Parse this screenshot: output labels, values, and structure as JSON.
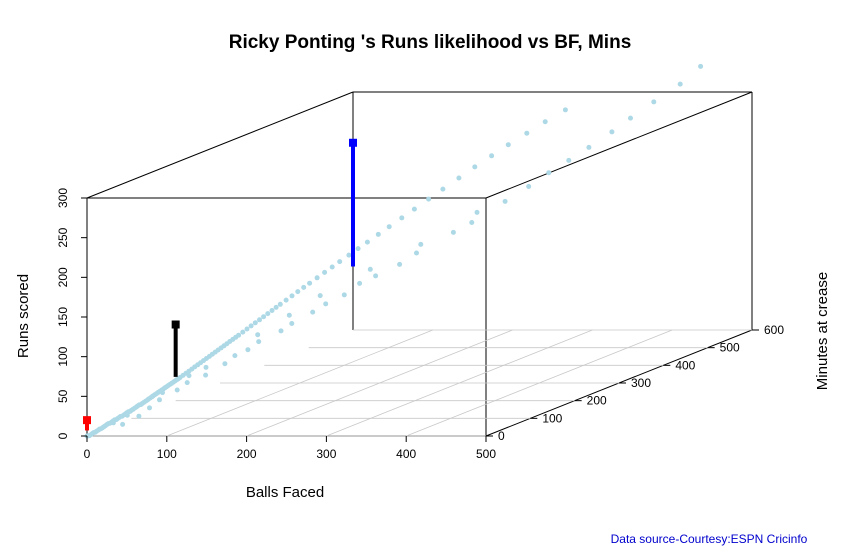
{
  "chart_data": {
    "type": "scatter",
    "title": "Ricky Ponting 's Runs likelihood vs BF, Mins",
    "xlabel": "Balls Faced",
    "ylabel": "Runs scored",
    "zlabel": "Minutes at crease",
    "xlim": [
      0,
      500
    ],
    "ylim": [
      0,
      600
    ],
    "zlim": [
      0,
      300
    ],
    "x_ticks": [
      "0",
      "100",
      "200",
      "300",
      "400",
      "500"
    ],
    "y_ticks": [
      "0",
      "100",
      "200",
      "300",
      "400",
      "500",
      "600"
    ],
    "z_ticks": [
      "0",
      "50",
      "100",
      "150",
      "200",
      "250",
      "300"
    ],
    "point_color": "#add8e6",
    "points": [
      [
        0,
        0,
        0
      ],
      [
        1,
        1,
        0
      ],
      [
        2,
        2,
        0
      ],
      [
        3,
        4,
        1
      ],
      [
        4,
        5,
        2
      ],
      [
        5,
        6,
        3
      ],
      [
        6,
        8,
        3
      ],
      [
        7,
        9,
        4
      ],
      [
        8,
        11,
        5
      ],
      [
        9,
        12,
        6
      ],
      [
        10,
        13,
        6
      ],
      [
        11,
        15,
        7
      ],
      [
        12,
        17,
        8
      ],
      [
        13,
        18,
        9
      ],
      [
        14,
        20,
        10
      ],
      [
        15,
        21,
        11
      ],
      [
        16,
        23,
        11
      ],
      [
        17,
        25,
        12
      ],
      [
        18,
        26,
        13
      ],
      [
        19,
        28,
        14
      ],
      [
        20,
        30,
        14
      ],
      [
        21,
        31,
        15
      ],
      [
        22,
        33,
        16
      ],
      [
        23,
        34,
        17
      ],
      [
        24,
        36,
        17
      ],
      [
        25,
        38,
        18
      ],
      [
        26,
        40,
        19
      ],
      [
        27,
        41,
        20
      ],
      [
        28,
        43,
        21
      ],
      [
        29,
        45,
        21
      ],
      [
        30,
        46,
        22
      ],
      [
        31,
        48,
        23
      ],
      [
        32,
        50,
        24
      ],
      [
        33,
        52,
        25
      ],
      [
        34,
        53,
        26
      ],
      [
        35,
        55,
        27
      ],
      [
        36,
        57,
        27
      ],
      [
        37,
        58,
        28
      ],
      [
        38,
        60,
        29
      ],
      [
        39,
        62,
        30
      ],
      [
        40,
        64,
        31
      ],
      [
        41,
        65,
        32
      ],
      [
        42,
        67,
        33
      ],
      [
        43,
        69,
        34
      ],
      [
        44,
        70,
        35
      ],
      [
        45,
        72,
        36
      ],
      [
        46,
        74,
        37
      ],
      [
        47,
        76,
        38
      ],
      [
        48,
        78,
        39
      ],
      [
        49,
        80,
        40
      ],
      [
        50,
        82,
        41
      ],
      [
        51,
        84,
        42
      ],
      [
        52,
        86,
        43
      ],
      [
        53,
        88,
        44
      ],
      [
        54,
        90,
        45
      ],
      [
        55,
        92,
        46
      ],
      [
        56,
        94,
        47
      ],
      [
        57,
        96,
        48
      ],
      [
        58,
        98,
        49
      ],
      [
        59,
        100,
        50
      ],
      [
        60,
        102,
        51
      ],
      [
        62,
        105,
        53
      ],
      [
        64,
        108,
        55
      ],
      [
        66,
        111,
        57
      ],
      [
        68,
        114,
        59
      ],
      [
        70,
        117,
        61
      ],
      [
        72,
        120,
        63
      ],
      [
        74,
        123,
        65
      ],
      [
        76,
        126,
        67
      ],
      [
        78,
        129,
        69
      ],
      [
        80,
        132,
        71
      ],
      [
        82,
        135,
        73
      ],
      [
        84,
        138,
        75
      ],
      [
        86,
        141,
        77
      ],
      [
        88,
        144,
        79
      ],
      [
        90,
        147,
        81
      ],
      [
        92,
        150,
        83
      ],
      [
        94,
        153,
        85
      ],
      [
        96,
        156,
        87
      ],
      [
        98,
        159,
        89
      ],
      [
        100,
        162,
        91
      ],
      [
        103,
        166,
        94
      ],
      [
        106,
        170,
        97
      ],
      [
        109,
        174,
        100
      ],
      [
        112,
        178,
        103
      ],
      [
        115,
        182,
        106
      ],
      [
        118,
        186,
        109
      ],
      [
        121,
        190,
        112
      ],
      [
        124,
        194,
        115
      ],
      [
        127,
        198,
        118
      ],
      [
        130,
        202,
        121
      ],
      [
        134,
        208,
        125
      ],
      [
        138,
        214,
        129
      ],
      [
        142,
        220,
        133
      ],
      [
        146,
        226,
        137
      ],
      [
        150,
        232,
        141
      ],
      [
        155,
        240,
        146
      ],
      [
        160,
        248,
        151
      ],
      [
        165,
        256,
        156
      ],
      [
        170,
        264,
        161
      ],
      [
        176,
        274,
        167
      ],
      [
        182,
        284,
        173
      ],
      [
        188,
        294,
        179
      ],
      [
        195,
        306,
        186
      ],
      [
        202,
        318,
        193
      ],
      [
        210,
        332,
        201
      ],
      [
        218,
        346,
        209
      ],
      [
        227,
        362,
        218
      ],
      [
        236,
        378,
        227
      ],
      [
        246,
        396,
        237
      ],
      [
        256,
        414,
        247
      ],
      [
        267,
        432,
        257
      ],
      [
        278,
        450,
        267
      ],
      [
        290,
        470,
        277
      ],
      [
        302,
        490,
        287
      ],
      [
        315,
        512,
        297
      ],
      [
        22,
        20,
        12
      ],
      [
        28,
        30,
        8
      ],
      [
        35,
        28,
        20
      ],
      [
        40,
        45,
        15
      ],
      [
        45,
        60,
        22
      ],
      [
        52,
        70,
        30
      ],
      [
        58,
        66,
        40
      ],
      [
        63,
        90,
        38
      ],
      [
        70,
        100,
        45
      ],
      [
        75,
        95,
        55
      ],
      [
        82,
        120,
        50
      ],
      [
        88,
        110,
        62
      ],
      [
        95,
        140,
        60
      ],
      [
        102,
        150,
        68
      ],
      [
        110,
        165,
        72
      ],
      [
        118,
        175,
        80
      ],
      [
        125,
        160,
        92
      ],
      [
        132,
        200,
        88
      ],
      [
        140,
        210,
        95
      ],
      [
        148,
        190,
        110
      ],
      [
        155,
        230,
        105
      ],
      [
        163,
        245,
        112
      ],
      [
        170,
        220,
        128
      ],
      [
        178,
        260,
        120
      ],
      [
        186,
        280,
        130
      ],
      [
        195,
        300,
        135
      ],
      [
        205,
        270,
        150
      ],
      [
        214,
        320,
        145
      ],
      [
        224,
        340,
        155
      ],
      [
        235,
        330,
        168
      ],
      [
        248,
        380,
        172
      ],
      [
        260,
        400,
        180
      ],
      [
        272,
        390,
        195
      ],
      [
        285,
        430,
        200
      ],
      [
        298,
        460,
        212
      ],
      [
        312,
        480,
        225
      ],
      [
        326,
        500,
        236
      ],
      [
        340,
        520,
        248
      ],
      [
        355,
        545,
        262
      ],
      [
        370,
        560,
        276
      ],
      [
        388,
        580,
        292
      ],
      [
        410,
        600,
        310
      ],
      [
        430,
        610,
        330
      ]
    ],
    "highlight_markers": [
      {
        "color": "#ff0000",
        "x": 0,
        "y": 0,
        "z_from": 7,
        "z_to": 20
      },
      {
        "color": "#000000",
        "x": 0,
        "y": 200,
        "z_from": 30,
        "z_to": 96
      },
      {
        "color": "#0000ff",
        "x": 0,
        "y": 600,
        "z_from": 80,
        "z_to": 236
      }
    ]
  },
  "source_note": "Data source-Courtesy:ESPN Cricinfo",
  "source_color": "#0000cd"
}
